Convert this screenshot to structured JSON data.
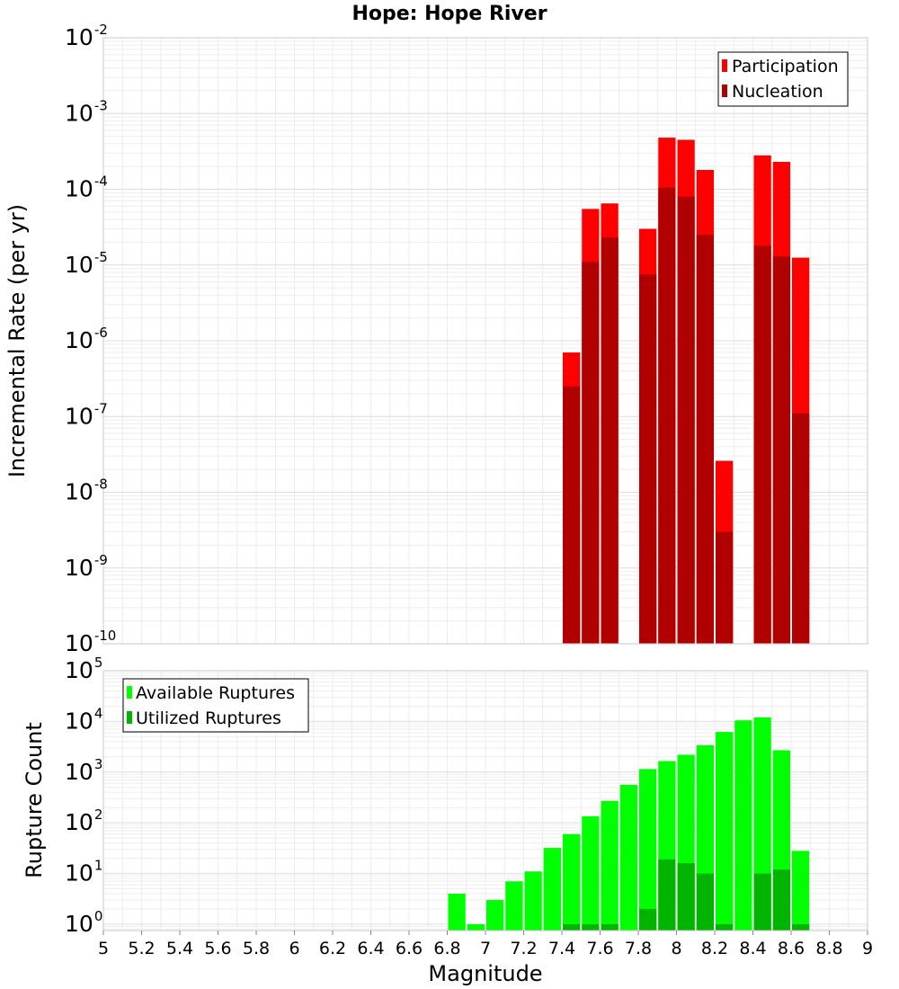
{
  "chart_data": [
    {
      "type": "bar",
      "title": "Hope: Hope River",
      "ylabel": "Incremental Rate (per yr)",
      "xlabel": "",
      "yscale": "log",
      "xlim": [
        5,
        9
      ],
      "ylim": [
        1e-10,
        0.01
      ],
      "y_tick_exponents": [
        -10,
        -9,
        -8,
        -7,
        -6,
        -5,
        -4,
        -3,
        -2
      ],
      "grid": true,
      "legend_position": "top-right",
      "bin_width": 0.1,
      "x": [
        7.45,
        7.55,
        7.65,
        7.85,
        7.95,
        8.05,
        8.15,
        8.25,
        8.45,
        8.55,
        8.65
      ],
      "series": [
        {
          "name": "Participation",
          "color": "#ff0000",
          "values": [
            7e-07,
            5.5e-05,
            6.5e-05,
            3e-05,
            0.00048,
            0.00045,
            0.00018,
            2.6e-08,
            0.00028,
            0.00023,
            1.25e-05
          ]
        },
        {
          "name": "Nucleation",
          "color": "#b00000",
          "values": [
            2.5e-07,
            1.1e-05,
            2.3e-05,
            7.5e-06,
            0.000105,
            8e-05,
            2.5e-05,
            3e-09,
            1.8e-05,
            1.3e-05,
            1.1e-07
          ]
        }
      ]
    },
    {
      "type": "bar",
      "title": "",
      "ylabel": "Rupture Count",
      "xlabel": "Magnitude",
      "yscale": "log",
      "xlim": [
        5,
        9
      ],
      "ylim": [
        0.75,
        100000.0
      ],
      "y_tick_exponents": [
        0,
        1,
        2,
        3,
        4,
        5
      ],
      "x_tick_labels": [
        "5",
        "5.2",
        "5.4",
        "5.6",
        "5.8",
        "6",
        "6.2",
        "6.4",
        "6.6",
        "6.8",
        "7",
        "7.2",
        "7.4",
        "7.6",
        "7.8",
        "8",
        "8.2",
        "8.4",
        "8.6",
        "8.8",
        "9"
      ],
      "grid": true,
      "legend_position": "top-left",
      "bin_width": 0.1,
      "x": [
        6.85,
        6.95,
        7.05,
        7.15,
        7.25,
        7.35,
        7.45,
        7.55,
        7.65,
        7.75,
        7.85,
        7.95,
        8.05,
        8.15,
        8.25,
        8.35,
        8.45,
        8.55,
        8.65
      ],
      "series": [
        {
          "name": "Available Ruptures",
          "color": "#00ff00",
          "values": [
            4,
            1,
            3,
            7,
            11,
            32,
            60,
            135,
            270,
            560,
            1150,
            1650,
            2200,
            3400,
            6200,
            10500,
            12000,
            2700,
            28
          ]
        },
        {
          "name": "Utilized Ruptures",
          "color": "#00b400",
          "values": [
            null,
            null,
            null,
            null,
            null,
            null,
            1,
            1,
            1,
            null,
            2,
            19,
            16,
            10,
            1,
            null,
            10,
            12,
            1
          ]
        }
      ]
    }
  ]
}
